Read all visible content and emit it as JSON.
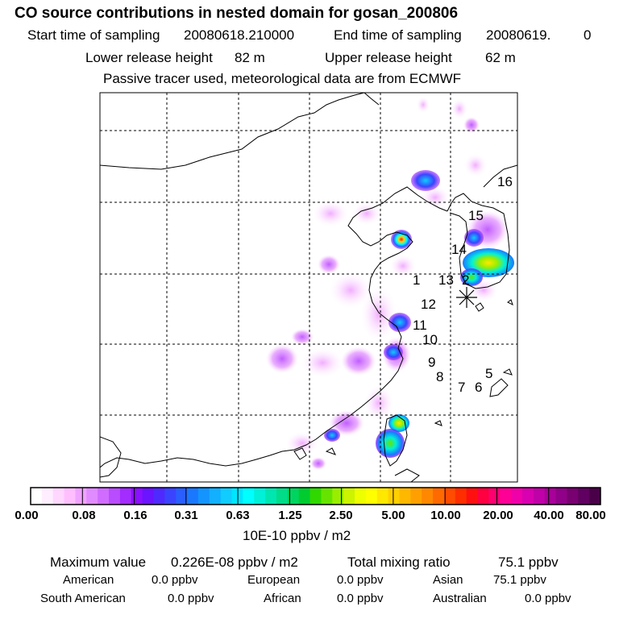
{
  "header": {
    "title": "CO  source contributions in nested domain for gosan_200806",
    "start_label": "Start time of sampling",
    "start_value": "20080618.210000",
    "end_label": "End time of sampling",
    "end_value": "20080619.",
    "end_extra": "0",
    "lower_label": "Lower release height",
    "lower_value": "82 m",
    "upper_label": "Upper release height",
    "upper_value": "62 m",
    "tracer_note": "Passive tracer used, meteorological data are from ECMWF"
  },
  "chart_data": {
    "type": "heatmap",
    "title": "CO  source contributions in nested domain for gosan_200806",
    "colorbar_ticks": [
      "0.00",
      "0.08",
      "0.16",
      "0.31",
      "0.63",
      "1.25",
      "2.50",
      "5.00",
      "10.00",
      "20.00",
      "40.00",
      "80.00"
    ],
    "colorbar_colors": [
      "#ffffff",
      "#ffeeff",
      "#ffd7ff",
      "#ffbfff",
      "#f0a3ff",
      "#e08bff",
      "#d06cff",
      "#b94cff",
      "#a32cff",
      "#8a10ff",
      "#6a14ff",
      "#4f2aff",
      "#3a44ff",
      "#2a5eff",
      "#1a78ff",
      "#1494ff",
      "#12b0ff",
      "#10ccff",
      "#00e6ff",
      "#00ffff",
      "#00f0d8",
      "#00e6b0",
      "#00dc88",
      "#00d460",
      "#00cc30",
      "#30d800",
      "#66e400",
      "#99ee00",
      "#ccf400",
      "#eeff00",
      "#ffff00",
      "#ffe800",
      "#ffd000",
      "#ffb800",
      "#ffa000",
      "#ff8800",
      "#ff6a00",
      "#ff4c00",
      "#ff2e00",
      "#ff1010",
      "#ff0040",
      "#ff0070",
      "#ff0096",
      "#f000a8",
      "#d800b0",
      "#c000a8",
      "#a80098",
      "#900088",
      "#780070",
      "#600060",
      "#4a0048"
    ],
    "unit": "10E-10 ppbv / m2",
    "point_labels": [
      "1",
      "2",
      "5",
      "6",
      "7",
      "8",
      "9",
      "10",
      "11",
      "12",
      "13",
      "14",
      "15",
      "16"
    ],
    "receptor": "Gosan",
    "plumes": [
      {
        "lon": 0.52,
        "lat": 0.25,
        "level": "high"
      },
      {
        "lon": 0.76,
        "lat": 0.44,
        "level": "high"
      },
      {
        "lon": 0.78,
        "lat": 0.48,
        "level": "very high"
      },
      {
        "lon": 0.37,
        "lat": 0.5,
        "level": "low"
      },
      {
        "lon": 0.6,
        "lat": 0.64,
        "level": "medium"
      },
      {
        "lon": 0.57,
        "lat": 0.88,
        "level": "medium"
      },
      {
        "lon": 0.45,
        "lat": 0.91,
        "level": "medium"
      }
    ]
  },
  "summary": {
    "max_label": "Maximum value",
    "max_value": "0.226E-08 ppbv / m2",
    "total_label": "Total mixing ratio",
    "total_value": "75.1 ppbv",
    "regions": [
      {
        "name": "American",
        "value": "0.0 ppbv"
      },
      {
        "name": "European",
        "value": "0.0 ppbv"
      },
      {
        "name": "Asian",
        "value": "75.1 ppbv"
      },
      {
        "name": "South American",
        "value": "0.0 ppbv"
      },
      {
        "name": "African",
        "value": "0.0 ppbv"
      },
      {
        "name": "Australian",
        "value": "0.0 ppbv"
      }
    ]
  }
}
